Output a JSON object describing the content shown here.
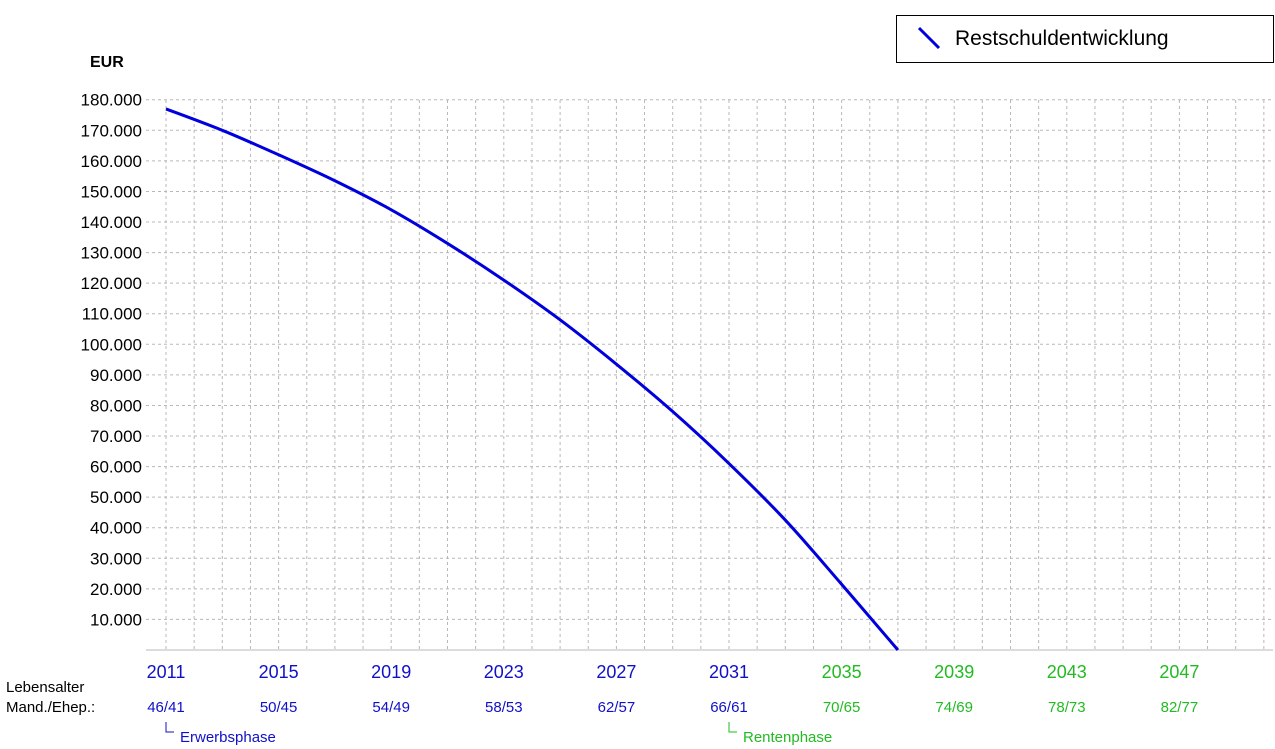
{
  "chart_data": {
    "type": "line",
    "ylabel": "EUR",
    "ylim": [
      0,
      180000
    ],
    "y_ticks": [
      10000,
      20000,
      30000,
      40000,
      50000,
      60000,
      70000,
      80000,
      90000,
      100000,
      110000,
      120000,
      130000,
      140000,
      150000,
      160000,
      170000,
      180000
    ],
    "y_tick_labels": [
      "10.000",
      "20.000",
      "30.000",
      "40.000",
      "50.000",
      "60.000",
      "70.000",
      "80.000",
      "90.000",
      "100.000",
      "110.000",
      "120.000",
      "130.000",
      "140.000",
      "150.000",
      "160.000",
      "170.000",
      "180.000"
    ],
    "xlim": [
      2011,
      2050
    ],
    "grid": true,
    "legend_position": "top-right",
    "series": [
      {
        "name": "Restschuldentwicklung",
        "color": "#0000dd",
        "x": [
          2011,
          2013,
          2015,
          2017,
          2019,
          2021,
          2023,
          2025,
          2027,
          2029,
          2031,
          2033,
          2035,
          2037
        ],
        "y": [
          177000,
          170000,
          162000,
          153500,
          144000,
          133000,
          121000,
          108000,
          93500,
          78000,
          61000,
          42500,
          21500,
          0
        ]
      }
    ],
    "x_ticks": [
      {
        "year": "2011",
        "age": "46/41",
        "x": 2011,
        "color": "#1010c8"
      },
      {
        "year": "2015",
        "age": "50/45",
        "x": 2015,
        "color": "#1010c8"
      },
      {
        "year": "2019",
        "age": "54/49",
        "x": 2019,
        "color": "#1010c8"
      },
      {
        "year": "2023",
        "age": "58/53",
        "x": 2023,
        "color": "#1010c8"
      },
      {
        "year": "2027",
        "age": "62/57",
        "x": 2027,
        "color": "#1010c8"
      },
      {
        "year": "2031",
        "age": "66/61",
        "x": 2031,
        "color": "#1010c8"
      },
      {
        "year": "2035",
        "age": "70/65",
        "x": 2035,
        "color": "#22bb22"
      },
      {
        "year": "2039",
        "age": "74/69",
        "x": 2039,
        "color": "#22bb22"
      },
      {
        "year": "2043",
        "age": "78/73",
        "x": 2043,
        "color": "#22bb22"
      },
      {
        "year": "2047",
        "age": "82/77",
        "x": 2047,
        "color": "#22bb22"
      }
    ],
    "row_labels": [
      "Lebensalter",
      "Mand./Ehep.:"
    ],
    "phases": [
      {
        "label": "Erwerbsphase",
        "x": 2011,
        "color": "#1010c8"
      },
      {
        "label": "Rentenphase",
        "x": 2031,
        "color": "#22bb22"
      }
    ]
  }
}
